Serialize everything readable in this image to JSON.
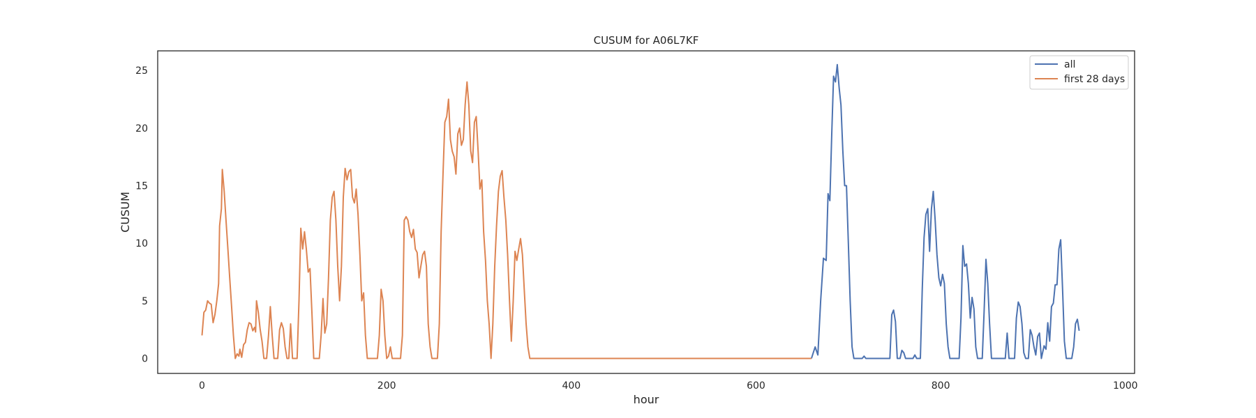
{
  "chart_data": {
    "type": "line",
    "title": "CUSUM for A06L7KF",
    "xlabel": "hour",
    "ylabel": "CUSUM",
    "xlim": [
      -48,
      1010
    ],
    "ylim": [
      -1.3,
      26.7
    ],
    "xticks": [
      0,
      200,
      400,
      600,
      800,
      1000
    ],
    "yticks": [
      0,
      5,
      10,
      15,
      20,
      25
    ],
    "grid": false,
    "legend_position": "top-right",
    "series": [
      {
        "name": "all",
        "color": "#4c72b0",
        "points": [
          [
            660,
            0
          ],
          [
            664,
            1
          ],
          [
            667,
            0.3
          ],
          [
            670,
            5
          ],
          [
            673,
            8.7
          ],
          [
            676,
            8.5
          ],
          [
            678,
            14.3
          ],
          [
            680,
            13.7
          ],
          [
            682,
            19.5
          ],
          [
            684,
            24.5
          ],
          [
            686,
            24
          ],
          [
            688,
            25.5
          ],
          [
            690,
            23.5
          ],
          [
            692,
            22
          ],
          [
            694,
            18
          ],
          [
            696,
            15
          ],
          [
            698,
            15
          ],
          [
            700,
            10
          ],
          [
            702,
            5
          ],
          [
            704,
            1
          ],
          [
            706,
            0
          ],
          [
            715,
            0
          ],
          [
            717,
            0.2
          ],
          [
            719,
            0
          ],
          [
            745,
            0
          ],
          [
            747,
            3.8
          ],
          [
            749,
            4.2
          ],
          [
            751,
            3.2
          ],
          [
            753,
            0
          ],
          [
            756,
            0
          ],
          [
            758,
            0.7
          ],
          [
            760,
            0.5
          ],
          [
            762,
            0
          ],
          [
            770,
            0
          ],
          [
            772,
            0.3
          ],
          [
            774,
            0
          ],
          [
            778,
            0
          ],
          [
            780,
            6
          ],
          [
            782,
            10.5
          ],
          [
            784,
            12.5
          ],
          [
            786,
            13
          ],
          [
            788,
            9.3
          ],
          [
            790,
            13
          ],
          [
            792,
            14.5
          ],
          [
            794,
            12
          ],
          [
            796,
            9
          ],
          [
            798,
            7
          ],
          [
            800,
            6.3
          ],
          [
            802,
            7.3
          ],
          [
            804,
            6.5
          ],
          [
            806,
            3
          ],
          [
            808,
            1
          ],
          [
            810,
            0
          ],
          [
            820,
            0
          ],
          [
            822,
            3.5
          ],
          [
            824,
            9.8
          ],
          [
            826,
            8
          ],
          [
            828,
            8.2
          ],
          [
            830,
            6.5
          ],
          [
            832,
            3.5
          ],
          [
            834,
            5.3
          ],
          [
            836,
            4.3
          ],
          [
            838,
            1
          ],
          [
            840,
            0
          ],
          [
            845,
            0
          ],
          [
            847,
            4
          ],
          [
            849,
            8.6
          ],
          [
            851,
            6.5
          ],
          [
            853,
            3
          ],
          [
            855,
            0
          ],
          [
            870,
            0
          ],
          [
            872,
            2.2
          ],
          [
            874,
            0
          ],
          [
            880,
            0
          ],
          [
            882,
            3.5
          ],
          [
            884,
            4.9
          ],
          [
            886,
            4.5
          ],
          [
            888,
            3
          ],
          [
            890,
            0.5
          ],
          [
            892,
            0
          ],
          [
            895,
            0
          ],
          [
            897,
            2.5
          ],
          [
            899,
            2
          ],
          [
            901,
            1
          ],
          [
            903,
            0.3
          ],
          [
            905,
            1.9
          ],
          [
            907,
            2.2
          ],
          [
            909,
            0
          ],
          [
            912,
            1.1
          ],
          [
            914,
            0.8
          ],
          [
            916,
            3.1
          ],
          [
            918,
            1.5
          ],
          [
            920,
            4.5
          ],
          [
            922,
            4.8
          ],
          [
            924,
            6.4
          ],
          [
            926,
            6.4
          ],
          [
            928,
            9.5
          ],
          [
            930,
            10.3
          ],
          [
            932,
            6
          ],
          [
            934,
            1.5
          ],
          [
            936,
            0
          ],
          [
            942,
            0
          ],
          [
            944,
            1
          ],
          [
            946,
            3
          ],
          [
            948,
            3.4
          ],
          [
            950,
            2.4
          ]
        ]
      },
      {
        "name": "first 28 days",
        "color": "#dd8452",
        "points": [
          [
            0,
            2
          ],
          [
            2,
            4
          ],
          [
            4,
            4.2
          ],
          [
            6,
            5
          ],
          [
            8,
            4.8
          ],
          [
            10,
            4.7
          ],
          [
            12,
            3.1
          ],
          [
            14,
            3.8
          ],
          [
            16,
            5
          ],
          [
            18,
            6.5
          ],
          [
            19,
            11.5
          ],
          [
            21,
            13
          ],
          [
            22,
            16.4
          ],
          [
            24,
            14.5
          ],
          [
            26,
            12
          ],
          [
            28,
            9.5
          ],
          [
            30,
            7
          ],
          [
            32,
            4.5
          ],
          [
            34,
            2
          ],
          [
            36,
            0
          ],
          [
            38,
            0.4
          ],
          [
            40,
            0.2
          ],
          [
            41,
            0.8
          ],
          [
            43,
            0.1
          ],
          [
            45,
            1.2
          ],
          [
            47,
            1.4
          ],
          [
            49,
            2.5
          ],
          [
            51,
            3.1
          ],
          [
            53,
            3.0
          ],
          [
            55,
            2.4
          ],
          [
            57,
            2.7
          ],
          [
            58,
            2.3
          ],
          [
            59,
            5
          ],
          [
            61,
            4
          ],
          [
            63,
            2.5
          ],
          [
            65,
            1.5
          ],
          [
            67,
            0
          ],
          [
            70,
            0
          ],
          [
            72,
            2
          ],
          [
            74,
            4.5
          ],
          [
            76,
            2
          ],
          [
            78,
            0
          ],
          [
            82,
            0
          ],
          [
            84,
            2.5
          ],
          [
            86,
            3.1
          ],
          [
            88,
            2.6
          ],
          [
            90,
            1
          ],
          [
            92,
            0
          ],
          [
            94,
            0
          ],
          [
            96,
            3
          ],
          [
            98,
            0
          ],
          [
            103,
            0
          ],
          [
            105,
            5
          ],
          [
            107,
            11.3
          ],
          [
            109,
            9.5
          ],
          [
            111,
            11
          ],
          [
            113,
            9.5
          ],
          [
            115,
            7.5
          ],
          [
            117,
            7.8
          ],
          [
            119,
            4
          ],
          [
            121,
            0
          ],
          [
            127,
            0
          ],
          [
            129,
            2
          ],
          [
            131,
            5.2
          ],
          [
            133,
            2.2
          ],
          [
            135,
            3
          ],
          [
            137,
            7
          ],
          [
            139,
            12
          ],
          [
            141,
            14
          ],
          [
            143,
            14.5
          ],
          [
            145,
            12
          ],
          [
            147,
            8
          ],
          [
            149,
            5
          ],
          [
            151,
            8
          ],
          [
            153,
            14
          ],
          [
            155,
            16.5
          ],
          [
            157,
            15.5
          ],
          [
            159,
            16.2
          ],
          [
            161,
            16.4
          ],
          [
            163,
            14
          ],
          [
            165,
            13.5
          ],
          [
            167,
            14.7
          ],
          [
            169,
            12.5
          ],
          [
            171,
            9
          ],
          [
            173,
            5
          ],
          [
            175,
            5.7
          ],
          [
            177,
            2
          ],
          [
            179,
            0
          ],
          [
            190,
            0
          ],
          [
            192,
            2
          ],
          [
            194,
            6
          ],
          [
            196,
            5
          ],
          [
            198,
            2
          ],
          [
            200,
            0
          ],
          [
            202,
            0.2
          ],
          [
            204,
            1
          ],
          [
            206,
            0
          ],
          [
            215,
            0
          ],
          [
            217,
            2
          ],
          [
            219,
            12
          ],
          [
            221,
            12.3
          ],
          [
            223,
            12
          ],
          [
            225,
            11
          ],
          [
            227,
            10.5
          ],
          [
            229,
            11.2
          ],
          [
            231,
            9.5
          ],
          [
            233,
            9.2
          ],
          [
            235,
            7
          ],
          [
            237,
            8
          ],
          [
            239,
            9
          ],
          [
            241,
            9.3
          ],
          [
            243,
            8
          ],
          [
            245,
            3
          ],
          [
            247,
            1
          ],
          [
            249,
            0
          ],
          [
            255,
            0
          ],
          [
            257,
            3
          ],
          [
            259,
            11
          ],
          [
            261,
            16
          ],
          [
            263,
            20.5
          ],
          [
            265,
            21
          ],
          [
            267,
            22.5
          ],
          [
            269,
            19
          ],
          [
            271,
            18
          ],
          [
            273,
            17.5
          ],
          [
            275,
            16
          ],
          [
            277,
            19.5
          ],
          [
            279,
            20
          ],
          [
            281,
            18.5
          ],
          [
            283,
            19
          ],
          [
            285,
            22
          ],
          [
            287,
            24
          ],
          [
            289,
            22
          ],
          [
            291,
            18
          ],
          [
            293,
            17
          ],
          [
            295,
            20.5
          ],
          [
            297,
            21
          ],
          [
            299,
            18
          ],
          [
            301,
            14.7
          ],
          [
            303,
            15.5
          ],
          [
            305,
            11
          ],
          [
            307,
            8.5
          ],
          [
            309,
            5
          ],
          [
            311,
            3
          ],
          [
            313,
            0
          ],
          [
            315,
            3
          ],
          [
            317,
            8
          ],
          [
            319,
            11.5
          ],
          [
            321,
            14.5
          ],
          [
            323,
            15.8
          ],
          [
            325,
            16.3
          ],
          [
            327,
            14
          ],
          [
            329,
            12
          ],
          [
            331,
            9
          ],
          [
            333,
            5
          ],
          [
            335,
            1.5
          ],
          [
            337,
            5
          ],
          [
            339,
            9.3
          ],
          [
            341,
            8.5
          ],
          [
            343,
            9.5
          ],
          [
            345,
            10.4
          ],
          [
            347,
            9
          ],
          [
            349,
            6
          ],
          [
            351,
            3
          ],
          [
            353,
            1
          ],
          [
            355,
            0
          ],
          [
            660,
            0
          ]
        ]
      }
    ]
  }
}
